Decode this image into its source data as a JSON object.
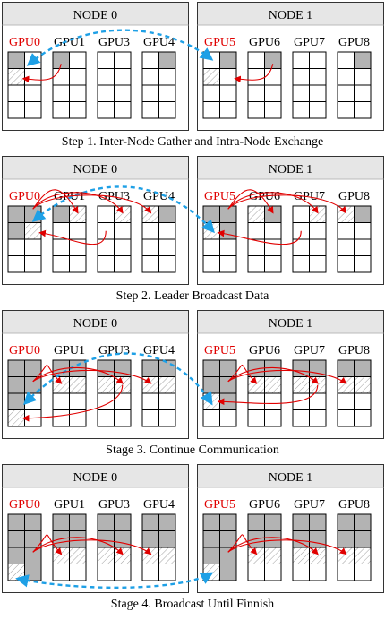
{
  "node_labels": [
    "NODE 0",
    "NODE 1"
  ],
  "gpu_labels": [
    [
      "GPU0",
      "GPU1",
      "GPU3",
      "GPU4"
    ],
    [
      "GPU5",
      "GPU6",
      "GPU7",
      "GPU8"
    ]
  ],
  "leader_gpus": [
    "GPU0",
    "GPU5"
  ],
  "colors": {
    "leader_text": "#e00000",
    "normal_text": "#000000",
    "header_fill": "#e6e6e6",
    "filled_cell": "#b3b3b3",
    "intra_arrow": "#e00000",
    "inter_arrow": "#1ea0e6"
  },
  "steps": [
    {
      "caption": "Step 1. Inter-Node Gather and Intra-Node Exchange",
      "nodes": [
        {
          "gpus": [
            {
              "filled": [
                0
              ],
              "hatched": [
                2
              ]
            },
            {
              "filled": [
                0
              ],
              "hatched": []
            },
            {
              "filled": [],
              "hatched": []
            },
            {
              "filled": [
                1
              ],
              "hatched": []
            }
          ]
        },
        {
          "gpus": [
            {
              "filled": [
                1
              ],
              "hatched": [
                2
              ]
            },
            {
              "filled": [
                1
              ],
              "hatched": []
            },
            {
              "filled": [],
              "hatched": []
            },
            {
              "filled": [
                1
              ],
              "hatched": []
            }
          ]
        }
      ]
    },
    {
      "caption": "Step 2. Leader Broadcast Data",
      "nodes": [
        {
          "gpus": [
            {
              "filled": [
                0,
                1,
                2
              ],
              "hatched": [
                3
              ]
            },
            {
              "filled": [
                0
              ],
              "hatched": [
                1
              ]
            },
            {
              "filled": [],
              "hatched": [
                1
              ]
            },
            {
              "filled": [
                1
              ],
              "hatched": [
                0
              ]
            }
          ]
        },
        {
          "gpus": [
            {
              "filled": [
                0,
                1,
                3
              ],
              "hatched": [
                2
              ]
            },
            {
              "filled": [
                1
              ],
              "hatched": [
                0
              ]
            },
            {
              "filled": [],
              "hatched": [
                1
              ]
            },
            {
              "filled": [
                1
              ],
              "hatched": [
                0
              ]
            }
          ]
        }
      ]
    },
    {
      "caption": "Stage 3. Continue Communication",
      "nodes": [
        {
          "gpus": [
            {
              "filled": [
                0,
                1,
                2,
                3,
                4
              ],
              "hatched": [
                6
              ]
            },
            {
              "filled": [
                0,
                1
              ],
              "hatched": [
                2,
                3
              ]
            },
            {
              "filled": [
                0,
                1
              ],
              "hatched": [
                2,
                3
              ]
            },
            {
              "filled": [
                0,
                1
              ],
              "hatched": [
                2,
                3
              ]
            }
          ]
        },
        {
          "gpus": [
            {
              "filled": [
                0,
                1,
                2,
                3,
                5
              ],
              "hatched": [
                4
              ]
            },
            {
              "filled": [
                0,
                1
              ],
              "hatched": [
                2,
                3
              ]
            },
            {
              "filled": [
                0,
                1
              ],
              "hatched": [
                2,
                3
              ]
            },
            {
              "filled": [
                0,
                1
              ],
              "hatched": [
                2,
                3
              ]
            }
          ]
        }
      ]
    },
    {
      "caption": "Stage 4. Broadcast Until Finnish",
      "nodes": [
        {
          "gpus": [
            {
              "filled": [
                0,
                1,
                2,
                3,
                4,
                5,
                7
              ],
              "hatched": [
                6
              ]
            },
            {
              "filled": [
                0,
                1,
                2,
                3
              ],
              "hatched": [
                4,
                5
              ]
            },
            {
              "filled": [
                0,
                1,
                2,
                3
              ],
              "hatched": [
                4,
                5
              ]
            },
            {
              "filled": [
                0,
                1,
                2,
                3
              ],
              "hatched": [
                4,
                5
              ]
            }
          ]
        },
        {
          "gpus": [
            {
              "filled": [
                0,
                1,
                2,
                3,
                4,
                5,
                7
              ],
              "hatched": [
                6
              ]
            },
            {
              "filled": [
                0,
                1,
                2,
                3
              ],
              "hatched": [
                4,
                5
              ]
            },
            {
              "filled": [
                0,
                1,
                2,
                3
              ],
              "hatched": [
                4,
                5
              ]
            },
            {
              "filled": [
                0,
                1,
                2,
                3
              ],
              "hatched": [
                4,
                5
              ]
            }
          ]
        }
      ]
    }
  ]
}
